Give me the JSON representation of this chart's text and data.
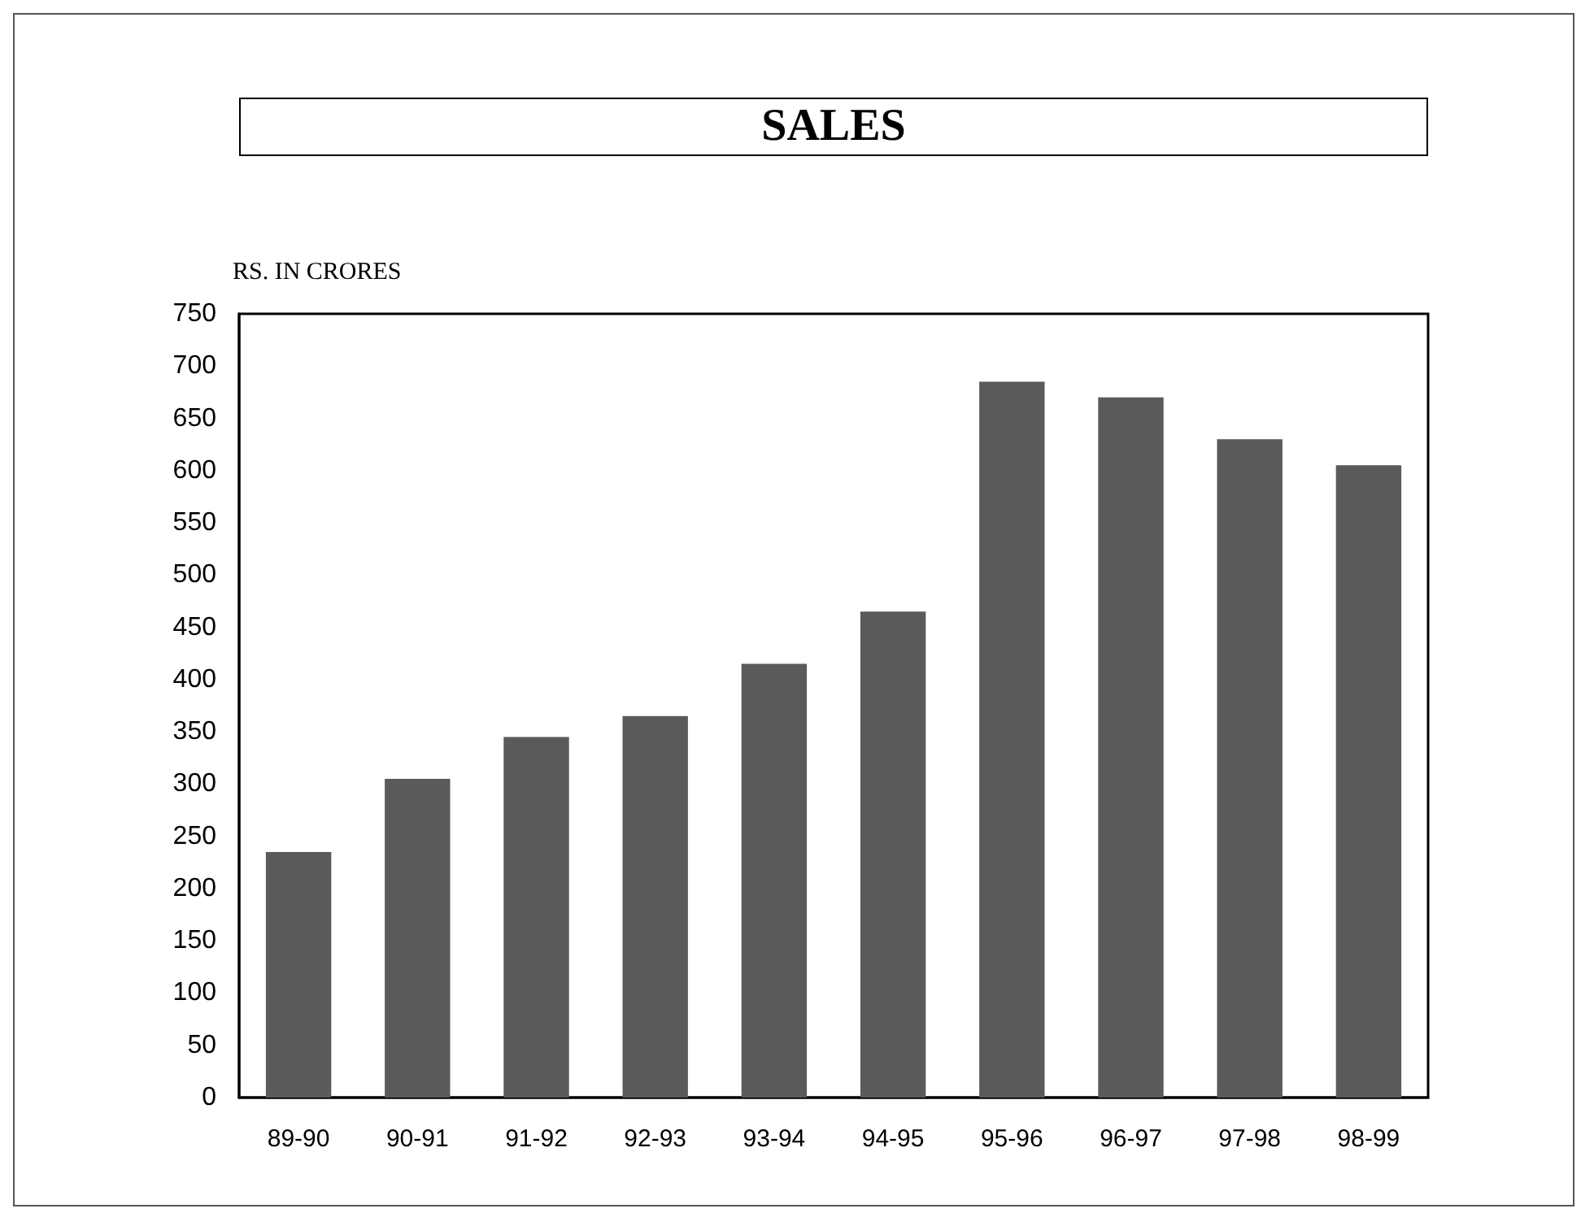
{
  "chart_data": {
    "type": "bar",
    "title": "SALES",
    "ylabel": "RS. IN CRORES",
    "categories": [
      "89-90",
      "90-91",
      "91-92",
      "92-93",
      "93-94",
      "94-95",
      "95-96",
      "96-97",
      "97-98",
      "98-99"
    ],
    "values": [
      235,
      305,
      345,
      365,
      415,
      465,
      685,
      670,
      630,
      605
    ],
    "color": "#5a5a5a",
    "ylim": [
      0,
      750
    ],
    "yticks": [
      0,
      50,
      100,
      150,
      200,
      250,
      300,
      350,
      400,
      450,
      500,
      550,
      600,
      650,
      700,
      750
    ]
  }
}
